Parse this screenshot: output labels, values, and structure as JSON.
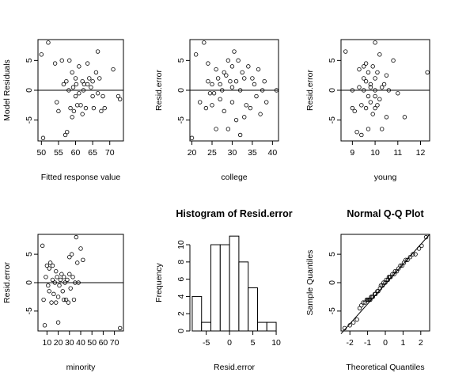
{
  "chart_data": [
    {
      "type": "scatter",
      "title": "",
      "xlabel": "Fitted response value",
      "ylabel": "Model Residuals",
      "xlim": [
        49,
        74
      ],
      "ylim": [
        -8.5,
        8.5
      ],
      "xticks": [
        50,
        55,
        60,
        65,
        70
      ],
      "yticks": [
        -5,
        0,
        5
      ],
      "hline": 0,
      "x": [
        50,
        50.5,
        52,
        54,
        54.5,
        55,
        56,
        56.5,
        57,
        57.3,
        57.5,
        58,
        58.2,
        58.5,
        59,
        59,
        59.3,
        59.5,
        60,
        60,
        60.2,
        60.5,
        61,
        61,
        61.5,
        62,
        62,
        62.3,
        62.5,
        63,
        63.5,
        63.5,
        64,
        64.5,
        65,
        65,
        65.3,
        66,
        66.5,
        66.5,
        67,
        67.5,
        68,
        68.5,
        71,
        72.5,
        73
      ],
      "y": [
        6,
        -8,
        8,
        4.5,
        -2,
        -3.5,
        5,
        1,
        -7.5,
        1.5,
        -7,
        0,
        5,
        -3,
        3,
        -4.5,
        0.5,
        -3.5,
        2,
        -1,
        1,
        -2.5,
        4,
        -0.5,
        -2.5,
        1.5,
        -4,
        0,
        1,
        -3,
        4.5,
        1,
        2,
        0.5,
        1.5,
        -1,
        -3,
        3,
        6.5,
        -0.5,
        2,
        -3.5,
        -1,
        -3,
        3.5,
        -1,
        -1.5
      ]
    },
    {
      "type": "scatter",
      "title": "",
      "xlabel": "college",
      "ylabel": "Resid.error",
      "xlim": [
        19.5,
        41.5
      ],
      "ylim": [
        -8.5,
        8.5
      ],
      "xticks": [
        20,
        25,
        30,
        35,
        40
      ],
      "yticks": [
        -5,
        0,
        5
      ],
      "hline": 0,
      "x": [
        20,
        21,
        22,
        23,
        23.5,
        24,
        24,
        24.5,
        25,
        25,
        25.5,
        26,
        26,
        26.5,
        27,
        27,
        27.5,
        28,
        28,
        28.5,
        29,
        29,
        29.5,
        30,
        30,
        30,
        30.5,
        31,
        31,
        31.5,
        32,
        32,
        32.5,
        33,
        33,
        33.5,
        34,
        34.5,
        35,
        35.5,
        36,
        36.5,
        37,
        37.5,
        38,
        38.5,
        41
      ],
      "y": [
        -8,
        6,
        -2,
        8,
        -3,
        1.5,
        4.5,
        -0.5,
        1,
        -2.5,
        -0.5,
        -6.5,
        3.5,
        2,
        1,
        -1.5,
        0,
        3,
        -3.5,
        2.5,
        -6.5,
        5,
        1.5,
        4,
        -2,
        0.5,
        6.5,
        -5,
        1.5,
        5,
        0,
        -7.5,
        3,
        -4.5,
        2,
        -2.5,
        4,
        -3,
        2,
        1,
        -1,
        3.5,
        -4,
        0,
        1.5,
        -2,
        0
      ]
    },
    {
      "type": "scatter",
      "title": "",
      "xlabel": "young",
      "ylabel": "Resid.error",
      "xlim": [
        8.5,
        12.4
      ],
      "ylim": [
        -8.5,
        8.5
      ],
      "xticks": [
        9,
        10,
        11,
        12
      ],
      "yticks": [
        -5,
        0,
        5
      ],
      "hline": 0,
      "x": [
        8.7,
        9,
        9,
        9.1,
        9.2,
        9.3,
        9.3,
        9.4,
        9.4,
        9.5,
        9.5,
        9.5,
        9.6,
        9.6,
        9.6,
        9.7,
        9.7,
        9.7,
        9.8,
        9.8,
        9.8,
        9.9,
        9.9,
        10,
        10,
        10,
        10,
        10,
        10.1,
        10.1,
        10.2,
        10.2,
        10.3,
        10.3,
        10.4,
        10.5,
        10.5,
        10.6,
        10.8,
        11,
        11.3,
        12.3
      ],
      "y": [
        6.5,
        -3,
        0,
        -3.5,
        -7,
        3.5,
        0.5,
        -7.5,
        -2.5,
        4,
        2,
        0,
        4.5,
        -3,
        1.5,
        -6.5,
        3,
        -1,
        1,
        -2,
        0.5,
        4,
        -4,
        8,
        2,
        0,
        -1,
        -3,
        3,
        -2.5,
        6,
        -1.5,
        0.5,
        -6.5,
        1,
        2.5,
        -4.5,
        0,
        5,
        -0.5,
        -4.5,
        3
      ]
    },
    {
      "type": "scatter",
      "title": "",
      "xlabel": "minority",
      "ylabel": "Resid.error",
      "xlim": [
        2,
        78
      ],
      "ylim": [
        -8.5,
        8.5
      ],
      "xticks": [
        10,
        20,
        30,
        40,
        50,
        60,
        70
      ],
      "yticks": [
        -5,
        0,
        5
      ],
      "hline": 0,
      "x": [
        6,
        7,
        8,
        9,
        10,
        11,
        12,
        12,
        13,
        14,
        15,
        15,
        16,
        17,
        18,
        18,
        19,
        20,
        20,
        21,
        22,
        23,
        24,
        25,
        25,
        26,
        27,
        28,
        29,
        30,
        30,
        31,
        32,
        33,
        34,
        35,
        36,
        37,
        38,
        40,
        42,
        75
      ],
      "y": [
        6.5,
        -3,
        -7.5,
        1,
        3,
        -0.5,
        2.5,
        -1.5,
        3.5,
        -3.5,
        0.5,
        3,
        -2,
        0,
        2,
        -3.5,
        1,
        -2.5,
        -7,
        -0.5,
        0.5,
        1.5,
        -1.5,
        -3,
        1,
        0,
        -3,
        0.5,
        -3.5,
        1.5,
        4.5,
        -1,
        5,
        1,
        -3,
        0,
        8,
        3.5,
        0,
        6,
        4,
        -8
      ]
    },
    {
      "type": "bar",
      "title": "Histogram of Resid.error",
      "xlabel": "Resid.error",
      "ylabel": "Frequency",
      "xlim": [
        -8.5,
        10.5
      ],
      "ylim": [
        0,
        11.2
      ],
      "xticks": [
        -5,
        0,
        5,
        10
      ],
      "yticks": [
        0,
        2,
        4,
        6,
        8,
        10
      ],
      "bins": [
        [
          -8,
          -6
        ],
        [
          -6,
          -4
        ],
        [
          -4,
          -2
        ],
        [
          -2,
          0
        ],
        [
          0,
          2
        ],
        [
          2,
          4
        ],
        [
          4,
          6
        ],
        [
          6,
          8
        ],
        [
          8,
          10
        ]
      ],
      "values": [
        4,
        1,
        10,
        10,
        11,
        8,
        5,
        1,
        1
      ]
    },
    {
      "type": "scatter",
      "title": "Normal Q-Q Plot",
      "xlabel": "Theoretical Quantiles",
      "ylabel": "Sample Quantiles",
      "xlim": [
        -2.5,
        2.5
      ],
      "ylim": [
        -8.5,
        8.5
      ],
      "xticks": [
        -2,
        -1,
        0,
        1,
        2
      ],
      "yticks": [
        -5,
        0,
        5
      ],
      "reference_line": [
        [
          -2.5,
          -9
        ],
        [
          2.5,
          8.5
        ]
      ],
      "x": [
        -2.3,
        -2.0,
        -1.8,
        -1.6,
        -1.45,
        -1.35,
        -1.25,
        -1.15,
        -1.05,
        -1.0,
        -0.95,
        -0.9,
        -0.85,
        -0.8,
        -0.75,
        -0.7,
        -0.6,
        -0.55,
        -0.45,
        -0.4,
        -0.3,
        -0.25,
        -0.15,
        -0.1,
        0.0,
        0.05,
        0.15,
        0.2,
        0.25,
        0.3,
        0.4,
        0.5,
        0.55,
        0.65,
        0.75,
        0.85,
        0.95,
        1.05,
        1.15,
        1.25,
        1.4,
        1.55,
        1.7,
        1.9,
        2.05,
        2.3
      ],
      "y": [
        -8,
        -7.5,
        -7,
        -6.5,
        -4.5,
        -4,
        -3.5,
        -3.5,
        -3,
        -3,
        -3,
        -3,
        -3,
        -2.5,
        -2.5,
        -2.5,
        -2,
        -2,
        -1.5,
        -1.5,
        -1,
        -0.5,
        -0.5,
        0,
        0,
        0.5,
        0.5,
        1,
        1,
        1,
        1.5,
        1.5,
        2,
        2,
        2.5,
        3,
        3,
        3.5,
        4,
        4,
        4.5,
        5,
        5,
        6,
        6.5,
        8
      ]
    }
  ]
}
